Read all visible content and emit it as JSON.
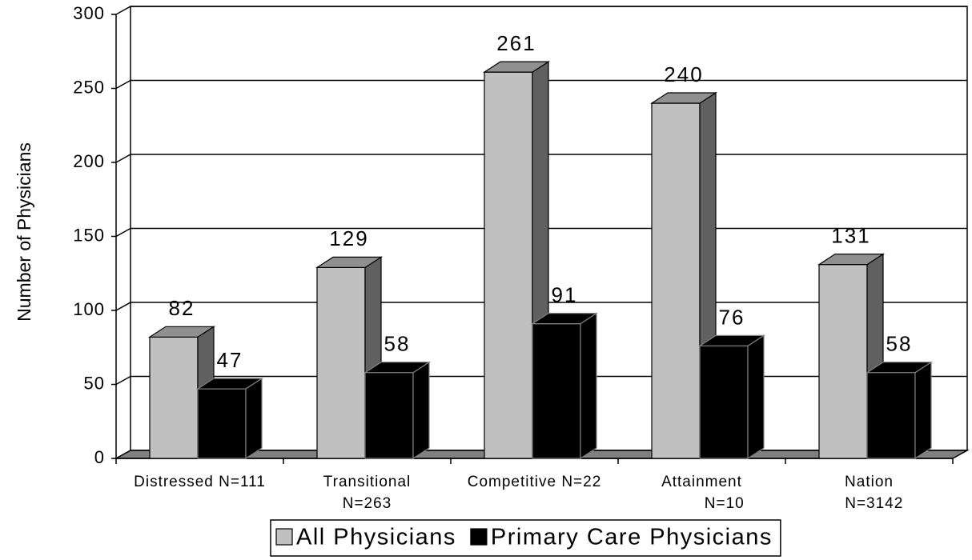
{
  "chart_data": {
    "type": "bar3d",
    "y_label": "Number of Physicians",
    "categories": [
      "Distressed N=111",
      "Transitional\nN=263",
      "Competitive N=22",
      "Attainment\n         N=10",
      "Nation\n  N=3142"
    ],
    "series": [
      {
        "name": "All Physicians",
        "color": "#c0c0c0",
        "values": [
          82,
          129,
          261,
          240,
          131
        ]
      },
      {
        "name": "Primary Care Physicians",
        "color": "#000000",
        "values": [
          47,
          58,
          91,
          76,
          58
        ]
      }
    ],
    "ylim": [
      0,
      300
    ],
    "yticks": [
      0,
      50,
      100,
      150,
      200,
      250,
      300
    ],
    "grid": true,
    "legend": "bottom"
  }
}
